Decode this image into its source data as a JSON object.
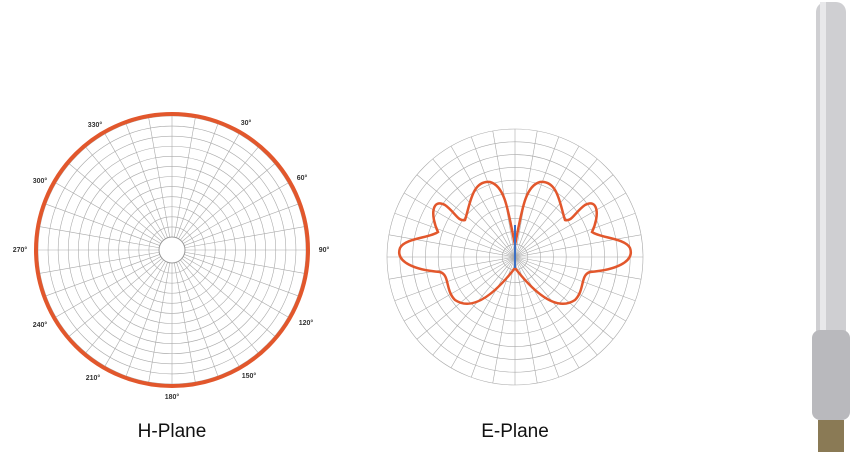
{
  "h_plane": {
    "caption": "H-Plane",
    "angle_labels": [
      "330°",
      "30°",
      "300°",
      "60°",
      "270°",
      "90°",
      "240°",
      "120°",
      "210°",
      "150°",
      "180°"
    ]
  },
  "e_plane": {
    "caption": "E-Plane"
  }
}
